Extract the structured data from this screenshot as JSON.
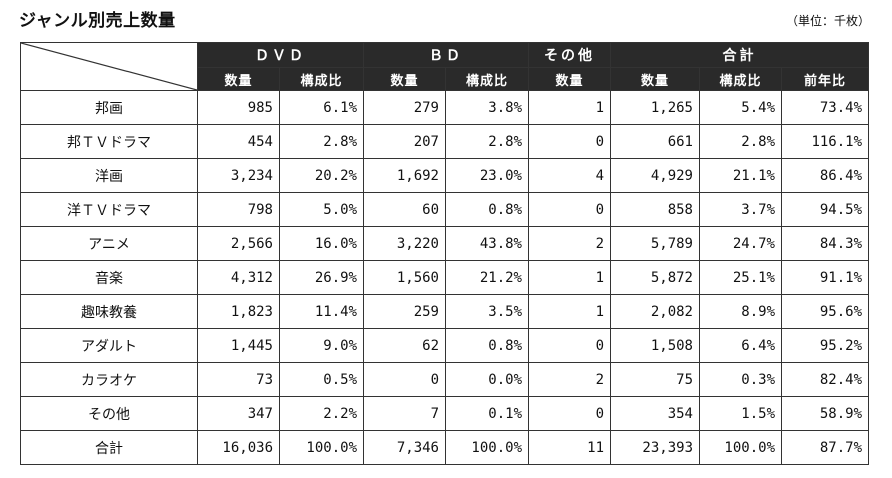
{
  "title": "ジャンル別売上数量",
  "unit": "（単位：千枚）",
  "groups": {
    "dvd": "ＤＶＤ",
    "bd": "ＢＤ",
    "other": "その他",
    "total": "合計"
  },
  "subheaders": {
    "dvd_qty": "数量",
    "dvd_ratio": "構成比",
    "bd_qty": "数量",
    "bd_ratio": "構成比",
    "other_qty": "数量",
    "total_qty": "数量",
    "total_ratio": "構成比",
    "total_yoy": "前年比"
  },
  "rows": [
    {
      "genre": "邦画",
      "dvd_qty": "985",
      "dvd_ratio": "6.1%",
      "bd_qty": "279",
      "bd_ratio": "3.8%",
      "other_qty": "1",
      "total_qty": "1,265",
      "total_ratio": "5.4%",
      "yoy": "73.4%"
    },
    {
      "genre": "邦ＴＶドラマ",
      "dvd_qty": "454",
      "dvd_ratio": "2.8%",
      "bd_qty": "207",
      "bd_ratio": "2.8%",
      "other_qty": "0",
      "total_qty": "661",
      "total_ratio": "2.8%",
      "yoy": "116.1%"
    },
    {
      "genre": "洋画",
      "dvd_qty": "3,234",
      "dvd_ratio": "20.2%",
      "bd_qty": "1,692",
      "bd_ratio": "23.0%",
      "other_qty": "4",
      "total_qty": "4,929",
      "total_ratio": "21.1%",
      "yoy": "86.4%"
    },
    {
      "genre": "洋ＴＶドラマ",
      "dvd_qty": "798",
      "dvd_ratio": "5.0%",
      "bd_qty": "60",
      "bd_ratio": "0.8%",
      "other_qty": "0",
      "total_qty": "858",
      "total_ratio": "3.7%",
      "yoy": "94.5%"
    },
    {
      "genre": "アニメ",
      "dvd_qty": "2,566",
      "dvd_ratio": "16.0%",
      "bd_qty": "3,220",
      "bd_ratio": "43.8%",
      "other_qty": "2",
      "total_qty": "5,789",
      "total_ratio": "24.7%",
      "yoy": "84.3%"
    },
    {
      "genre": "音楽",
      "dvd_qty": "4,312",
      "dvd_ratio": "26.9%",
      "bd_qty": "1,560",
      "bd_ratio": "21.2%",
      "other_qty": "1",
      "total_qty": "5,872",
      "total_ratio": "25.1%",
      "yoy": "91.1%"
    },
    {
      "genre": "趣味教養",
      "dvd_qty": "1,823",
      "dvd_ratio": "11.4%",
      "bd_qty": "259",
      "bd_ratio": "3.5%",
      "other_qty": "1",
      "total_qty": "2,082",
      "total_ratio": "8.9%",
      "yoy": "95.6%"
    },
    {
      "genre": "アダルト",
      "dvd_qty": "1,445",
      "dvd_ratio": "9.0%",
      "bd_qty": "62",
      "bd_ratio": "0.8%",
      "other_qty": "0",
      "total_qty": "1,508",
      "total_ratio": "6.4%",
      "yoy": "95.2%"
    },
    {
      "genre": "カラオケ",
      "dvd_qty": "73",
      "dvd_ratio": "0.5%",
      "bd_qty": "0",
      "bd_ratio": "0.0%",
      "other_qty": "2",
      "total_qty": "75",
      "total_ratio": "0.3%",
      "yoy": "82.4%"
    },
    {
      "genre": "その他",
      "dvd_qty": "347",
      "dvd_ratio": "2.2%",
      "bd_qty": "7",
      "bd_ratio": "0.1%",
      "other_qty": "0",
      "total_qty": "354",
      "total_ratio": "1.5%",
      "yoy": "58.9%"
    },
    {
      "genre": "合計",
      "dvd_qty": "16,036",
      "dvd_ratio": "100.0%",
      "bd_qty": "7,346",
      "bd_ratio": "100.0%",
      "other_qty": "11",
      "total_qty": "23,393",
      "total_ratio": "100.0%",
      "yoy": "87.7%"
    }
  ],
  "colors": {
    "header_bg": "#2a2a2a",
    "header_text": "#ffffff",
    "border": "#333333"
  }
}
